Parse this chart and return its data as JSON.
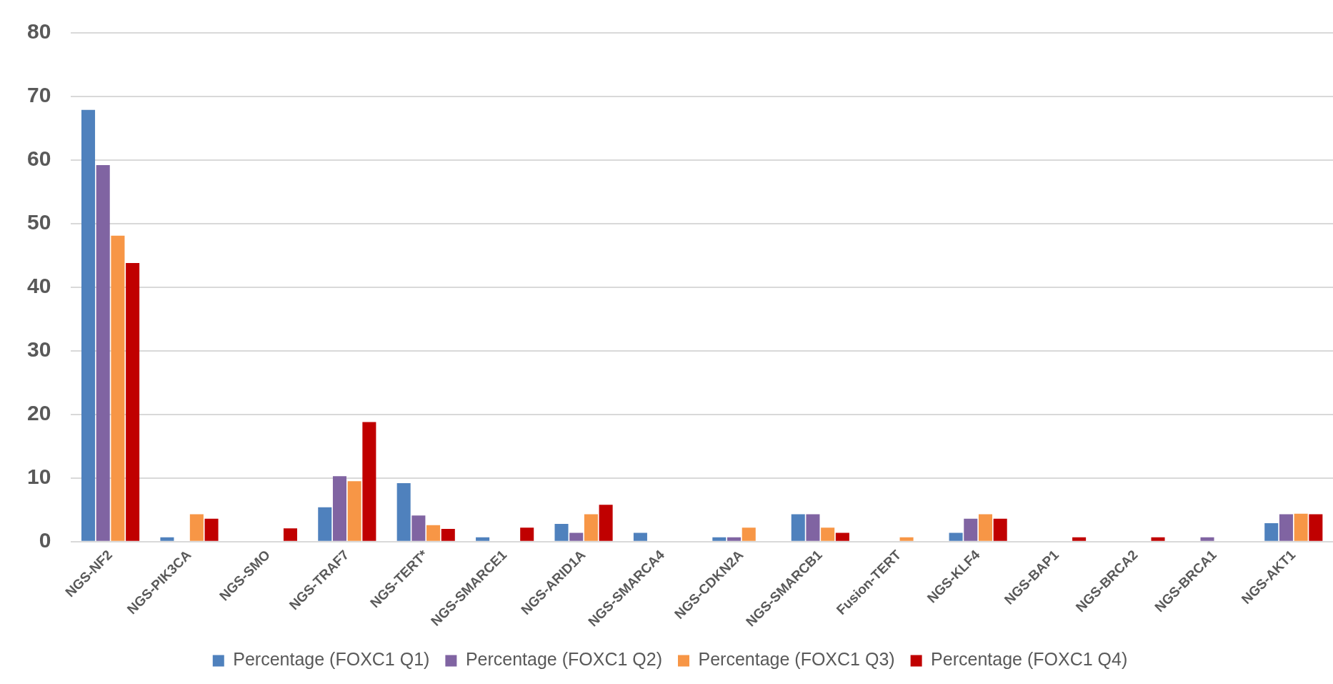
{
  "chart_data": {
    "type": "bar",
    "categories": [
      "NGS-NF2",
      "NGS-PIK3CA",
      "NGS-SMO",
      "NGS-TRAF7",
      "NGS-TERT*",
      "NGS-SMARCE1",
      "NGS-ARID1A",
      "NGS-SMARCA4",
      "NGS-CDKN2A",
      "NGS-SMARCB1",
      "Fusion-TERT",
      "NGS-KLF4",
      "NGS-BAP1",
      "NGS-BRCA2",
      "NGS-BRCA1",
      "NGS-AKT1"
    ],
    "series": [
      {
        "name": "Percentage (FOXC1 Q1)",
        "color": "#4f81bd",
        "values": [
          67.9,
          0.7,
          0,
          5.4,
          9.2,
          0.7,
          2.8,
          1.4,
          0.7,
          4.3,
          0,
          1.4,
          0,
          0,
          0,
          2.9
        ]
      },
      {
        "name": "Percentage (FOXC1 Q2)",
        "color": "#8064a2",
        "values": [
          59.2,
          0,
          0,
          10.3,
          4.1,
          0,
          1.4,
          0,
          0.7,
          4.3,
          0,
          3.6,
          0,
          0,
          0.7,
          4.3
        ]
      },
      {
        "name": "Percentage (FOXC1 Q3)",
        "color": "#f79646",
        "values": [
          48.1,
          4.3,
          0,
          9.5,
          2.6,
          0,
          4.3,
          0,
          2.2,
          2.2,
          0.7,
          4.3,
          0,
          0,
          0,
          4.4
        ]
      },
      {
        "name": "Percentage (FOXC1 Q4)",
        "color": "#c00000",
        "values": [
          43.8,
          3.6,
          2.1,
          18.8,
          2.0,
          2.2,
          5.8,
          0,
          0,
          1.4,
          0,
          3.6,
          0.7,
          0.7,
          0,
          4.3
        ]
      }
    ],
    "ylim": [
      0,
      80
    ],
    "yticks": [
      0,
      10,
      20,
      30,
      40,
      50,
      60,
      70,
      80
    ],
    "grid": "y",
    "legend": "bottom"
  }
}
